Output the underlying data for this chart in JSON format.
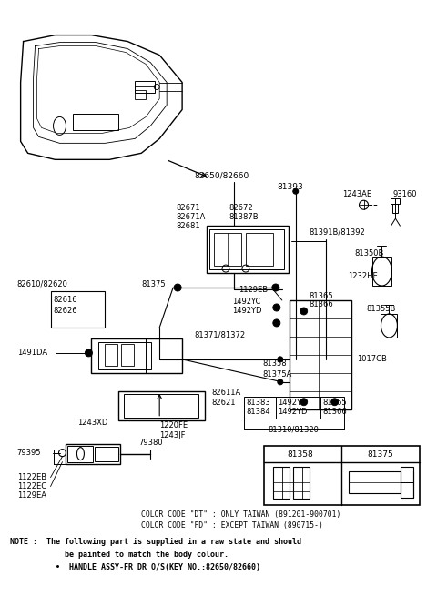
{
  "bg_color": "#ffffff",
  "fig_width": 4.8,
  "fig_height": 6.55,
  "dpi": 100,
  "color_code1": "COLOR CODE \"DT\" : ONLY TAIWAN (891201-900701)",
  "color_code2": "COLOR CODE \"FD\" : EXCEPT TAIWAN (890715-)",
  "note_line1": "NOTE :  The following part is supplied in a raw state and should",
  "note_line2": "            be painted to match the body colour.",
  "note_line3": "          •  HANDLE ASSY-FR DR O/S(KEY NO.:82650/82660)"
}
